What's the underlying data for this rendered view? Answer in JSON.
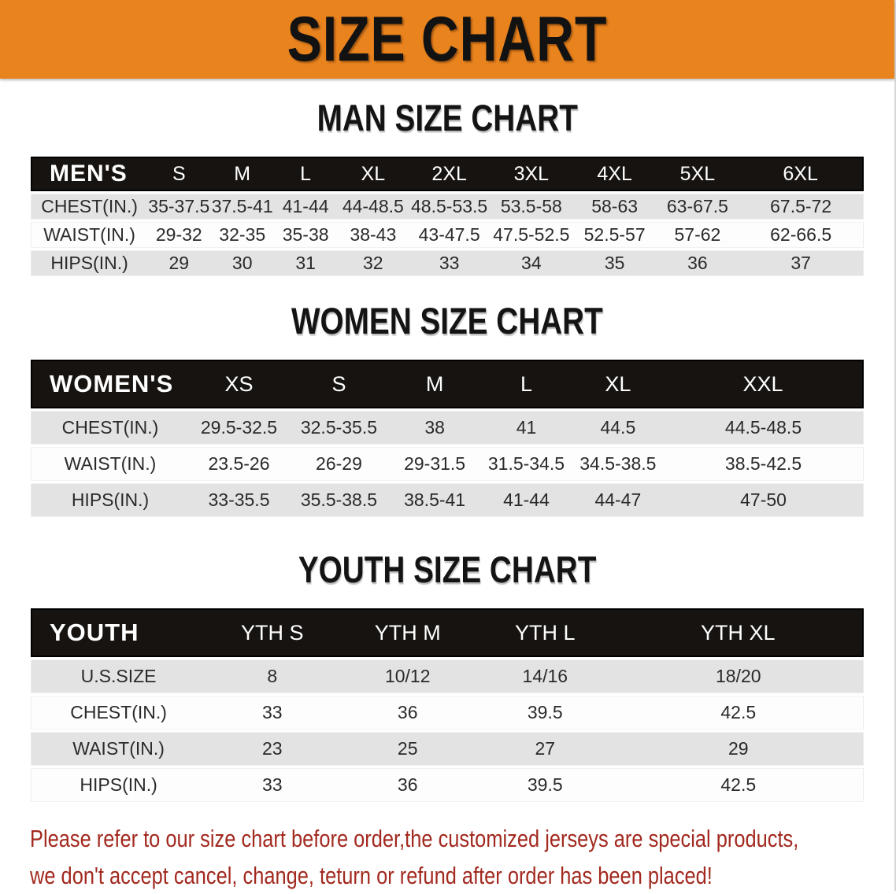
{
  "banner": {
    "title": "SIZE CHART",
    "bg_color": "#E8831E"
  },
  "sections": [
    {
      "heading": "MAN SIZE CHART",
      "table": {
        "header": [
          "MEN'S",
          "S",
          "M",
          "L",
          "XL",
          "2XL",
          "3XL",
          "4XL",
          "5XL",
          "6XL"
        ],
        "rows": [
          {
            "label": "CHEST(IN.)",
            "values": [
              "35-37.5",
              "37.5-41",
              "41-44",
              "44-48.5",
              "48.5-53.5",
              "53.5-58",
              "58-63",
              "63-67.5",
              "67.5-72"
            ]
          },
          {
            "label": "WAIST(IN.)",
            "values": [
              "29-32",
              "32-35",
              "35-38",
              "38-43",
              "43-47.5",
              "47.5-52.5",
              "52.5-57",
              "57-62",
              "62-66.5"
            ]
          },
          {
            "label": "HIPS(IN.)",
            "values": [
              "29",
              "30",
              "31",
              "32",
              "33",
              "34",
              "35",
              "36",
              "37"
            ]
          }
        ]
      }
    },
    {
      "heading": "WOMEN SIZE CHART",
      "table": {
        "header": [
          "WOMEN'S",
          "XS",
          "S",
          "M",
          "L",
          "XL",
          "XXL"
        ],
        "rows": [
          {
            "label": "CHEST(IN.)",
            "values": [
              "29.5-32.5",
              "32.5-35.5",
              "38",
              "41",
              "44.5",
              "44.5-48.5"
            ]
          },
          {
            "label": "WAIST(IN.)",
            "values": [
              "23.5-26",
              "26-29",
              "29-31.5",
              "31.5-34.5",
              "34.5-38.5",
              "38.5-42.5"
            ]
          },
          {
            "label": "HIPS(IN.)",
            "values": [
              "33-35.5",
              "35.5-38.5",
              "38.5-41",
              "41-44",
              "44-47",
              "47-50"
            ]
          }
        ]
      }
    },
    {
      "heading": "YOUTH SIZE CHART",
      "table": {
        "header": [
          "YOUTH",
          "YTH S",
          "YTH M",
          "YTH L",
          "YTH XL"
        ],
        "rows": [
          {
            "label": "U.S.SIZE",
            "values": [
              "8",
              "10/12",
              "14/16",
              "18/20"
            ]
          },
          {
            "label": "CHEST(IN.)",
            "values": [
              "33",
              "36",
              "39.5",
              "42.5"
            ]
          },
          {
            "label": "WAIST(IN.)",
            "values": [
              "23",
              "25",
              "27",
              "29"
            ]
          },
          {
            "label": "HIPS(IN.)",
            "values": [
              "33",
              "36",
              "39.5",
              "42.5"
            ]
          }
        ]
      }
    }
  ],
  "footer": {
    "line1": "Please refer to our size chart before order,the customized jerseys are special products,",
    "line2": "we don't accept cancel, change, teturn or refund after order has been placed!",
    "text_color": "#A2291F"
  }
}
